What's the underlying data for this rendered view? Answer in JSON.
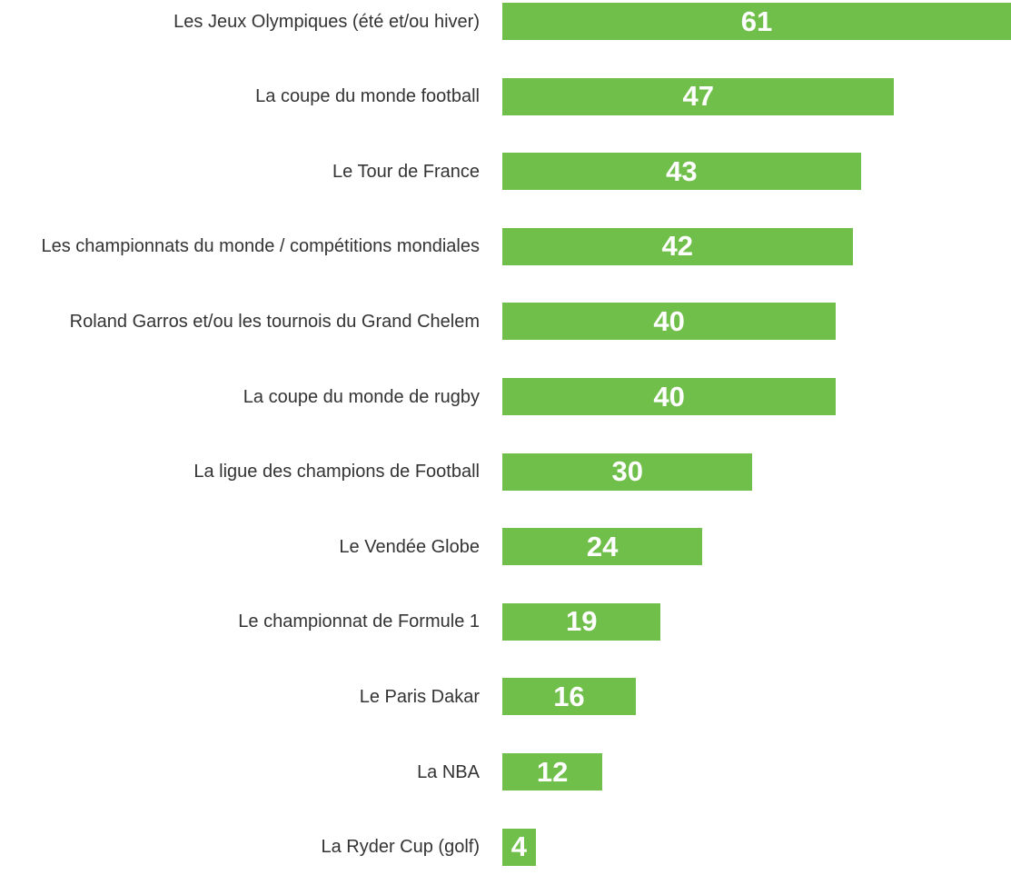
{
  "chart_data": {
    "type": "bar",
    "orientation": "horizontal",
    "color": "#70bf4b",
    "categories": [
      "Les Jeux Olympiques (été et/ou hiver)",
      "La coupe du monde football",
      "Le Tour de France",
      "Les championnats du monde / compétitions mondiales",
      "Roland Garros et/ou les tournois du Grand Chelem",
      "La coupe du monde de rugby",
      "La ligue des champions de Football",
      "Le Vendée Globe",
      "Le championnat de Formule 1",
      "Le Paris Dakar",
      "La NBA",
      "La Ryder Cup (golf)"
    ],
    "values": [
      61,
      47,
      43,
      42,
      40,
      40,
      30,
      24,
      19,
      16,
      12,
      4
    ]
  }
}
